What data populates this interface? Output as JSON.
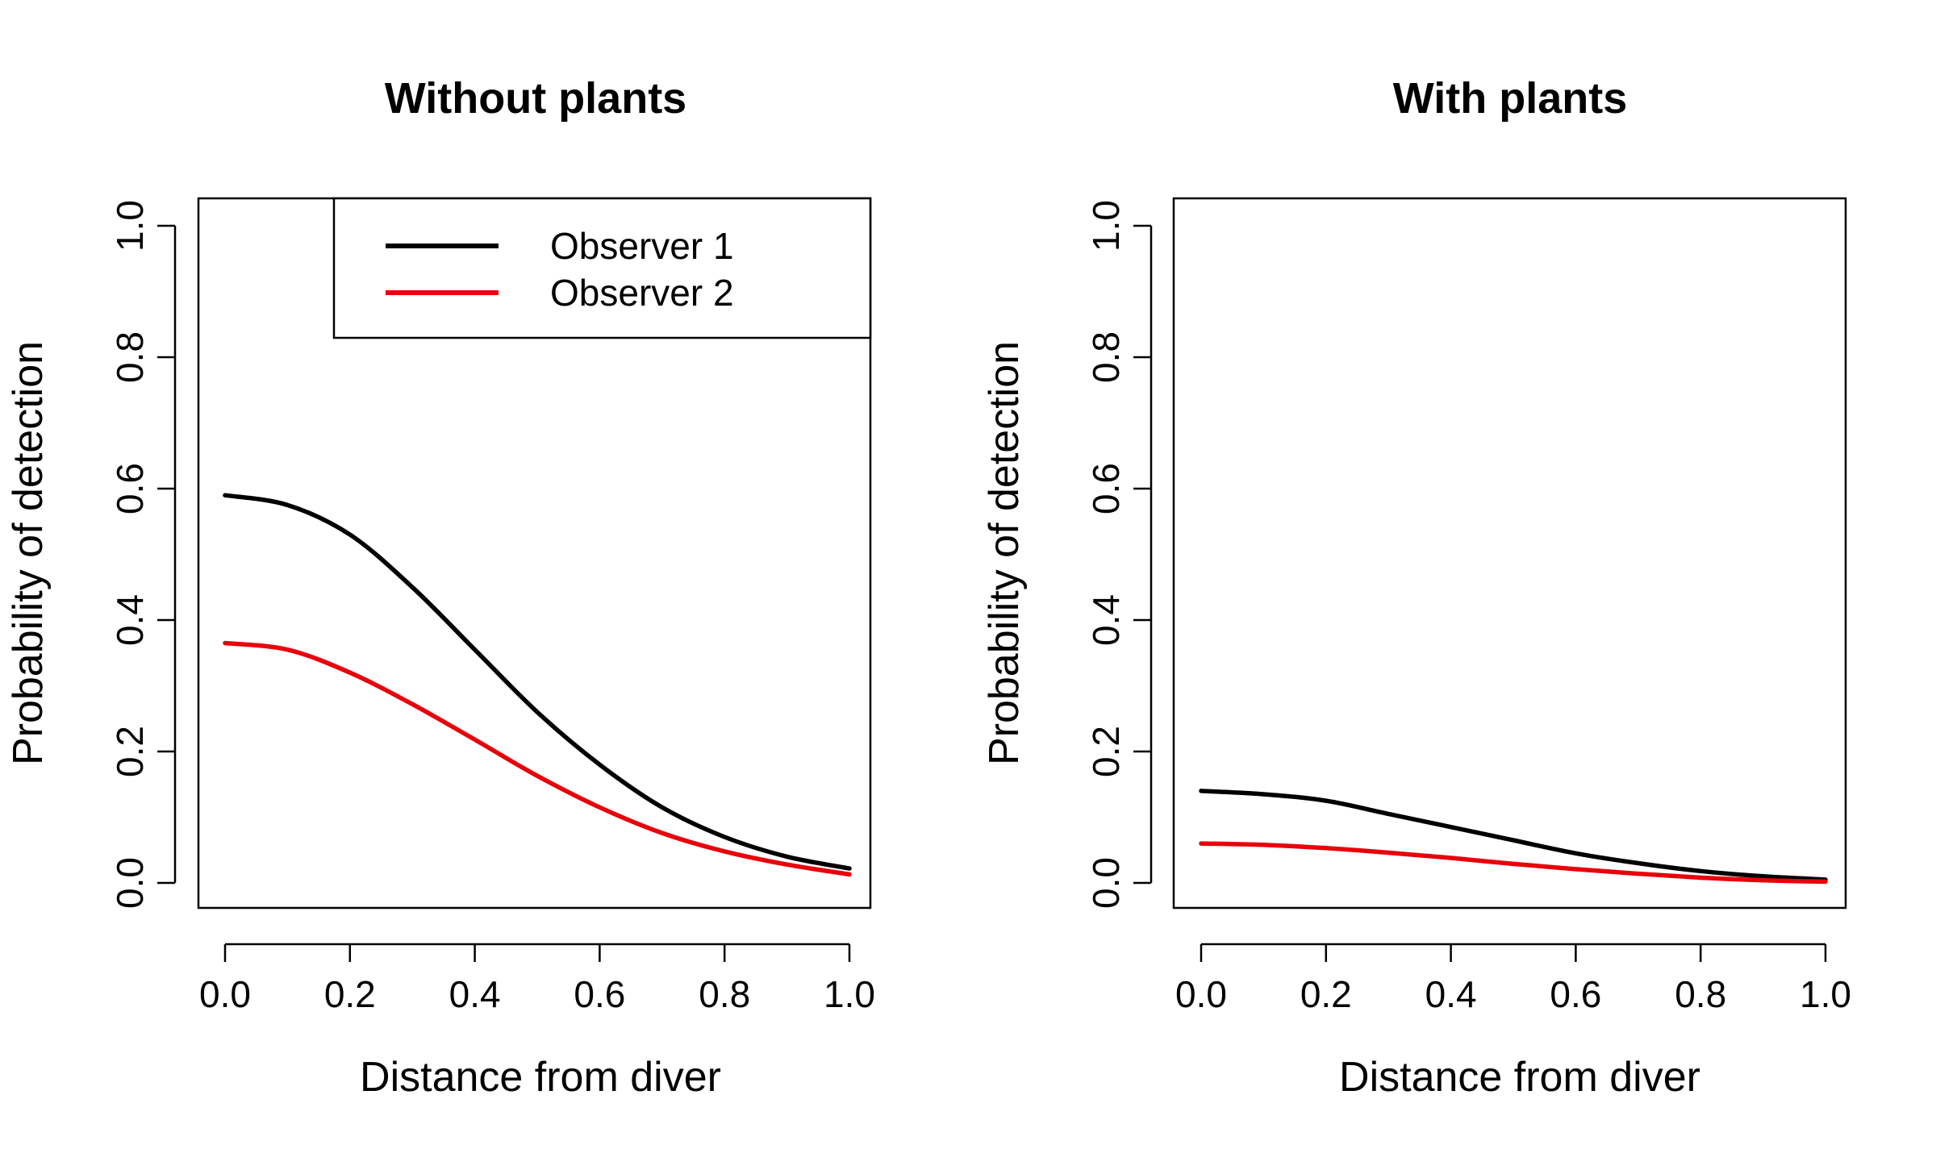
{
  "colors": {
    "observer_1": "#000000",
    "observer_2": "#e8000b",
    "axis": "#000000",
    "background": "#ffffff"
  },
  "chart_data": [
    {
      "type": "line",
      "title": "Without plants",
      "xlabel": "Distance from diver",
      "ylabel": "Probability of detection",
      "xlim": [
        0,
        1
      ],
      "ylim": [
        0,
        1
      ],
      "xticks": [
        "0.0",
        "0.2",
        "0.4",
        "0.6",
        "0.8",
        "1.0"
      ],
      "yticks": [
        "0.0",
        "0.2",
        "0.4",
        "0.6",
        "0.8",
        "1.0"
      ],
      "grid": false,
      "legend": {
        "position": "top-right",
        "entries": [
          "Observer 1",
          "Observer 2"
        ]
      },
      "x": [
        0.0,
        0.1,
        0.2,
        0.3,
        0.4,
        0.5,
        0.6,
        0.7,
        0.8,
        0.9,
        1.0
      ],
      "series": [
        {
          "name": "Observer 1",
          "color": "#000000",
          "values": [
            0.59,
            0.575,
            0.53,
            0.45,
            0.355,
            0.26,
            0.18,
            0.115,
            0.07,
            0.04,
            0.022
          ]
        },
        {
          "name": "Observer 2",
          "color": "#e8000b",
          "values": [
            0.365,
            0.355,
            0.32,
            0.272,
            0.218,
            0.163,
            0.115,
            0.076,
            0.048,
            0.028,
            0.013
          ]
        }
      ]
    },
    {
      "type": "line",
      "title": "With plants",
      "xlabel": "Distance from diver",
      "ylabel": "Probability of detection",
      "xlim": [
        0,
        1
      ],
      "ylim": [
        0,
        1
      ],
      "xticks": [
        "0.0",
        "0.2",
        "0.4",
        "0.6",
        "0.8",
        "1.0"
      ],
      "yticks": [
        "0.0",
        "0.2",
        "0.4",
        "0.6",
        "0.8",
        "1.0"
      ],
      "grid": false,
      "x": [
        0.0,
        0.1,
        0.2,
        0.3,
        0.4,
        0.5,
        0.6,
        0.7,
        0.8,
        0.9,
        1.0
      ],
      "series": [
        {
          "name": "Observer 1",
          "color": "#000000",
          "values": [
            0.14,
            0.135,
            0.125,
            0.105,
            0.085,
            0.065,
            0.045,
            0.03,
            0.018,
            0.01,
            0.005
          ]
        },
        {
          "name": "Observer 2",
          "color": "#e8000b",
          "values": [
            0.06,
            0.058,
            0.053,
            0.046,
            0.038,
            0.029,
            0.021,
            0.014,
            0.008,
            0.004,
            0.002
          ]
        }
      ]
    }
  ]
}
